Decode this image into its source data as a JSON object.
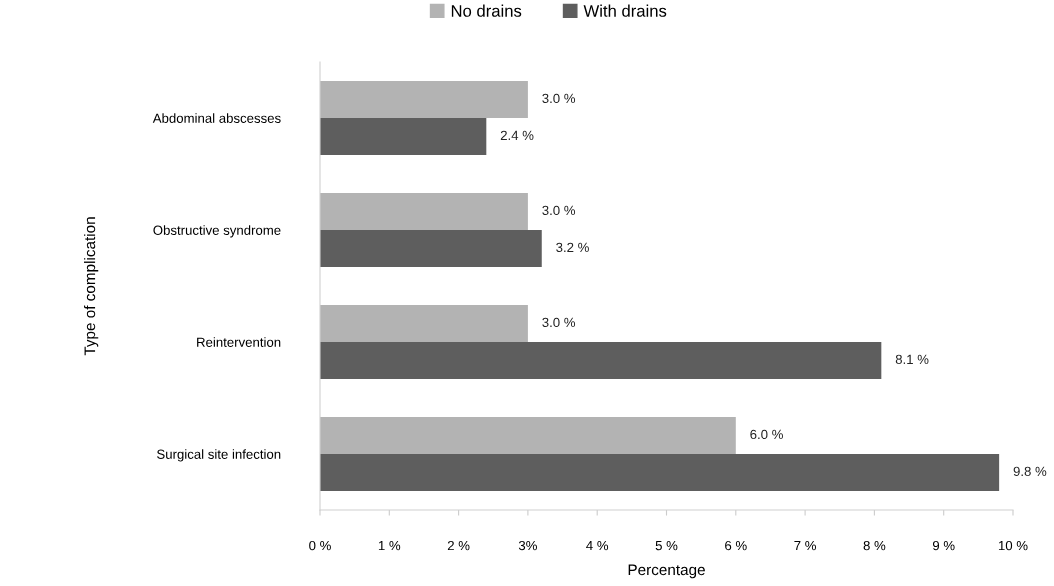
{
  "chart_data": {
    "type": "bar",
    "orientation": "horizontal",
    "xlabel": "Percentage",
    "ylabel": "Type of complication",
    "categories": [
      "Abdominal abscesses",
      "Obstructive syndrome",
      "Reintervention",
      "Surgical site infection"
    ],
    "series": [
      {
        "name": "No drains",
        "color": "#b3b3b3",
        "values": [
          3.0,
          3.0,
          3.0,
          6.0
        ],
        "value_labels": [
          "3.0 %",
          "3.0 %",
          "3.0 %",
          "6.0 %"
        ]
      },
      {
        "name": "With drains",
        "color": "#5e5e5e",
        "values": [
          2.4,
          3.2,
          8.1,
          9.8
        ],
        "value_labels": [
          "2.4 %",
          "3.2 %",
          "8.1 %",
          "9.8 %"
        ]
      }
    ],
    "xlim": [
      0,
      10
    ],
    "xticks": [
      {
        "value": 0,
        "label": "0 %"
      },
      {
        "value": 1,
        "label": "1 %"
      },
      {
        "value": 2,
        "label": "2 %"
      },
      {
        "value": 3,
        "label": "3%"
      },
      {
        "value": 4,
        "label": "4 %"
      },
      {
        "value": 5,
        "label": "5 %"
      },
      {
        "value": 6,
        "label": "6 %"
      },
      {
        "value": 7,
        "label": "7 %"
      },
      {
        "value": 8,
        "label": "8 %"
      },
      {
        "value": 9,
        "label": "9 %"
      },
      {
        "value": 10,
        "label": "10 %"
      }
    ],
    "grid": false,
    "legend": "top"
  }
}
